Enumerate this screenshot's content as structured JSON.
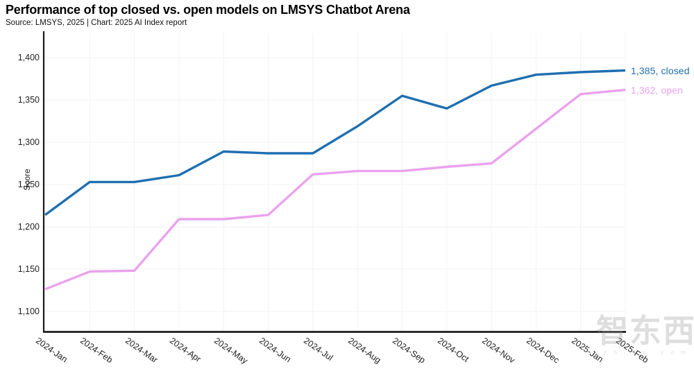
{
  "header": {
    "title": "Performance of top closed vs. open models on LMSYS Chatbot Arena",
    "subtitle": "Source: LMSYS, 2025 | Chart: 2025 AI Index report"
  },
  "watermark": {
    "text": "智东西",
    "subtext": "z h i d x . c o m"
  },
  "chart_data": {
    "type": "line",
    "title": "Performance of top closed vs. open models on LMSYS Chatbot Arena",
    "source_note": "Source: LMSYS, 2025 | Chart: 2025 AI Index report",
    "xlabel": "",
    "ylabel": "Score",
    "categories": [
      "2024-Jan",
      "2024-Feb",
      "2024-Mar",
      "2024-Apr",
      "2024-May",
      "2024-Jun",
      "2024-Jul",
      "2024-Aug",
      "2024-Sep",
      "2024-Oct",
      "2024-Nov",
      "2024-Dec",
      "2025-Jan",
      "2025-Feb"
    ],
    "y_ticks": [
      {
        "value": 1100,
        "label": "1,100"
      },
      {
        "value": 1150,
        "label": "1,150"
      },
      {
        "value": 1200,
        "label": "1,200"
      },
      {
        "value": 1250,
        "label": "1,250"
      },
      {
        "value": 1300,
        "label": "1,300"
      },
      {
        "value": 1350,
        "label": "1,350"
      },
      {
        "value": 1400,
        "label": "1,400"
      }
    ],
    "ylim": [
      1076,
      1429
    ],
    "grid": true,
    "legend_position": "end-of-line labels at right",
    "series": [
      {
        "name": "closed",
        "color": "#1f6fb0",
        "end_label": "1,385, closed",
        "values": [
          1214,
          1253,
          1253,
          1261,
          1289,
          1287,
          1287,
          1319,
          1355,
          1340,
          1367,
          1380,
          1383,
          1385
        ]
      },
      {
        "name": "open",
        "color": "#eaa2ed",
        "end_label": "1,362, open",
        "values": [
          1126,
          1147,
          1148,
          1209,
          1209,
          1214,
          1262,
          1266,
          1266,
          1271,
          1275,
          1316,
          1357,
          1362
        ]
      }
    ]
  }
}
